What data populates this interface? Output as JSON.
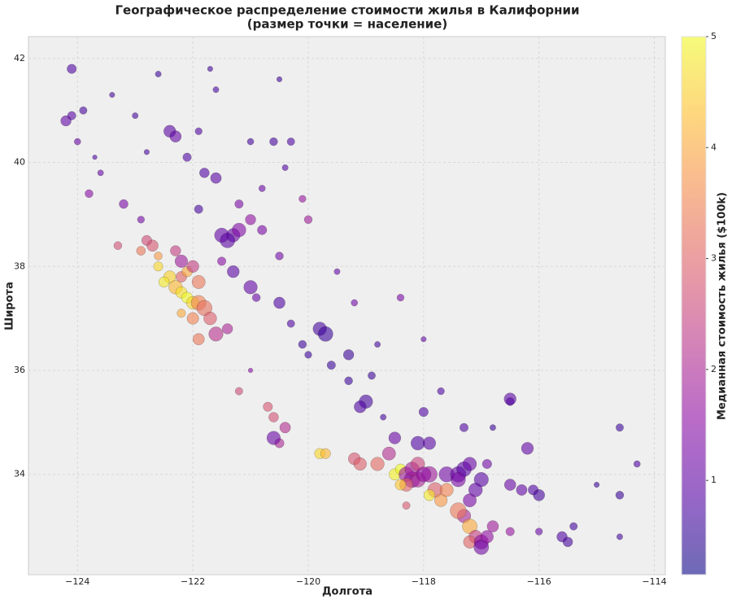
{
  "chart_data": {
    "type": "scatter",
    "title": "Географическое распределение стоимости жилья в Калифорнии",
    "subtitle": "(размер точки = население)",
    "xlabel": "Долгота",
    "ylabel": "Широта",
    "colorbar_label": "Медианная стоимость жилья ($100k)",
    "colormap": "plasma",
    "x": [
      -124.1,
      -124.2,
      -124.1,
      -123.9,
      -123.2,
      -123.8,
      -122.4,
      -122.3,
      -121.6,
      -121.8,
      -121.2,
      -121.0,
      -120.6,
      -122.6,
      -121.6,
      -120.5,
      -123.0,
      -122.9,
      -121.9,
      -121.3,
      -121.4,
      -121.5,
      -121.2,
      -121.0,
      -120.8,
      -120.5,
      -120.0,
      -120.1,
      -121.3,
      -121.0,
      -120.5,
      -119.8,
      -119.7,
      -119.3,
      -119.0,
      -119.1,
      -119.6,
      -120.0,
      -118.9,
      -118.8,
      -119.2,
      -118.4,
      -118.0,
      -118.0,
      -117.3,
      -116.5,
      -117.7,
      -116.8,
      -122.4,
      -122.5,
      -122.3,
      -122.2,
      -122.1,
      -122.0,
      -121.9,
      -121.8,
      -122.2,
      -122.1,
      -122.0,
      -121.9,
      -122.6,
      -122.7,
      -122.8,
      -122.3,
      -122.2,
      -121.7,
      -121.6,
      -121.9,
      -122.0,
      -121.4,
      -122.6,
      -121.2,
      -120.7,
      -120.6,
      -120.4,
      -120.5,
      -119.8,
      -119.7,
      -119.2,
      -119.1,
      -118.8,
      -118.5,
      -118.4,
      -118.3,
      -118.2,
      -118.1,
      -118.3,
      -118.4,
      -118.2,
      -118.1,
      -117.9,
      -117.8,
      -117.9,
      -117.7,
      -117.6,
      -117.4,
      -117.3,
      -117.2,
      -117.0,
      -117.1,
      -117.2,
      -116.9,
      -116.5,
      -116.3,
      -116.1,
      -116.0,
      -118.6,
      -118.5,
      -118.1,
      -117.9,
      -118.3,
      -117.3,
      -117.2,
      -117.4,
      -117.1,
      -117.2,
      -117.0,
      -117.0,
      -116.9,
      -116.8,
      -116.5,
      -116.0,
      -115.6,
      -115.5,
      -115.4,
      -114.6,
      -114.6,
      -114.3,
      -114.6,
      -115.0,
      -116.2,
      -116.5,
      -120.6,
      -120.1,
      -119.5,
      -121.0,
      -122.1,
      -121.9,
      -123.6,
      -124.0,
      -123.3,
      -122.9,
      -122.2,
      -121.5,
      -120.9,
      -120.3,
      -119.3,
      -118.7,
      -117.4,
      -117.6,
      -118.0,
      -120.8,
      -120.4,
      -122.8,
      -123.4,
      -121.7,
      -120.3,
      -123.7
    ],
    "y": [
      41.8,
      40.8,
      40.9,
      41.0,
      39.2,
      39.4,
      40.6,
      40.5,
      39.7,
      39.8,
      39.2,
      40.4,
      40.4,
      41.7,
      41.4,
      41.6,
      40.9,
      38.9,
      39.1,
      38.6,
      38.5,
      38.6,
      38.7,
      38.9,
      38.7,
      38.2,
      38.9,
      39.3,
      37.9,
      37.6,
      37.3,
      36.8,
      36.7,
      36.3,
      35.4,
      35.3,
      36.1,
      36.3,
      35.9,
      36.5,
      37.3,
      37.4,
      36.6,
      35.2,
      34.9,
      35.4,
      35.6,
      34.9,
      37.8,
      37.7,
      37.6,
      37.5,
      37.4,
      37.3,
      37.3,
      37.2,
      37.8,
      37.9,
      38.0,
      37.7,
      38.0,
      38.4,
      38.5,
      38.3,
      38.1,
      37.0,
      36.7,
      36.6,
      37.0,
      36.8,
      38.2,
      35.6,
      35.3,
      35.1,
      34.9,
      34.6,
      34.4,
      34.4,
      34.3,
      34.2,
      34.2,
      34.0,
      34.1,
      34.0,
      33.9,
      33.9,
      33.8,
      33.8,
      34.1,
      34.2,
      34.0,
      33.7,
      33.6,
      33.5,
      34.0,
      34.0,
      34.1,
      34.2,
      33.9,
      33.7,
      33.5,
      34.2,
      33.8,
      33.7,
      33.7,
      33.6,
      34.4,
      34.7,
      34.6,
      34.6,
      33.4,
      33.2,
      33.0,
      33.3,
      32.8,
      32.7,
      32.7,
      32.6,
      32.8,
      33.0,
      32.9,
      32.9,
      32.8,
      32.7,
      33.0,
      33.6,
      34.9,
      34.2,
      32.8,
      33.8,
      34.5,
      35.45,
      34.7,
      36.5,
      37.9,
      36.0,
      40.1,
      40.6,
      39.8,
      40.4,
      38.4,
      38.3,
      37.1,
      38.1,
      37.4,
      36.9,
      35.8,
      35.1,
      33.9,
      33.7,
      34.0,
      39.5,
      39.9,
      40.2,
      41.3,
      41.8,
      40.4,
      40.1
    ],
    "values": [
      0.8,
      1.0,
      0.9,
      0.7,
      1.3,
      1.5,
      0.9,
      1.0,
      0.9,
      0.8,
      1.3,
      0.7,
      0.7,
      0.6,
      0.7,
      0.6,
      0.7,
      1.2,
      0.7,
      1.1,
      0.9,
      1.0,
      1.4,
      1.6,
      1.3,
      1.2,
      1.8,
      1.7,
      0.9,
      1.0,
      0.8,
      0.7,
      0.6,
      0.6,
      0.7,
      0.8,
      0.6,
      0.6,
      0.6,
      0.7,
      1.2,
      1.3,
      1.0,
      0.8,
      0.8,
      0.7,
      0.8,
      0.6,
      4.5,
      4.8,
      4.2,
      4.7,
      5.0,
      4.6,
      3.5,
      3.2,
      3.0,
      4.0,
      2.4,
      3.3,
      4.6,
      2.8,
      2.6,
      2.4,
      1.8,
      2.9,
      2.2,
      3.3,
      3.5,
      2.0,
      3.8,
      2.6,
      2.8,
      2.7,
      2.1,
      2.0,
      4.6,
      4.2,
      2.8,
      2.9,
      3.1,
      4.9,
      5.0,
      1.8,
      1.5,
      2.0,
      3.0,
      4.4,
      1.9,
      2.5,
      1.8,
      2.9,
      4.8,
      3.8,
      1.2,
      1.1,
      0.9,
      1.1,
      0.9,
      1.0,
      1.3,
      1.2,
      1.1,
      1.0,
      0.8,
      0.7,
      2.1,
      1.1,
      0.8,
      0.9,
      2.8,
      2.0,
      4.0,
      3.3,
      2.4,
      3.0,
      1.6,
      1.2,
      1.6,
      1.8,
      1.7,
      1.1,
      0.8,
      0.7,
      0.7,
      0.6,
      0.6,
      0.8,
      0.7,
      0.6,
      1.0,
      0.9,
      1.1,
      0.6,
      1.0,
      1.5,
      0.8,
      0.8,
      1.0,
      1.1,
      2.7,
      3.3,
      4.0,
      1.5,
      1.1,
      0.8,
      0.6,
      0.7,
      1.3,
      3.5,
      1.6,
      1.1,
      0.8,
      0.7,
      0.7,
      0.7,
      0.8,
      0.8
    ],
    "sizes": [
      1200,
      1500,
      1000,
      800,
      1100,
      900,
      2000,
      1800,
      1600,
      1300,
      1000,
      600,
      900,
      500,
      500,
      400,
      500,
      700,
      1000,
      2500,
      3000,
      2800,
      2600,
      1500,
      1200,
      900,
      900,
      700,
      2000,
      2500,
      1800,
      2500,
      3000,
      1500,
      2500,
      2000,
      1000,
      700,
      800,
      500,
      600,
      700,
      400,
      1200,
      1000,
      900,
      700,
      500,
      2000,
      1500,
      2500,
      1800,
      1700,
      2200,
      3000,
      3200,
      1600,
      1500,
      2000,
      2400,
      1200,
      1800,
      1400,
      1500,
      2200,
      2300,
      2800,
      1800,
      1900,
      1500,
      900,
      800,
      1200,
      1300,
      1600,
      1200,
      1500,
      1400,
      2000,
      2200,
      2500,
      1800,
      1500,
      3000,
      3500,
      3200,
      2400,
      1600,
      2800,
      2600,
      3400,
      3000,
      1700,
      2200,
      3200,
      3300,
      3000,
      2500,
      2800,
      2600,
      2400,
      1200,
      1800,
      1600,
      1400,
      1800,
      2400,
      2000,
      2600,
      2200,
      800,
      2500,
      3000,
      3500,
      2400,
      2200,
      2800,
      3000,
      2200,
      1800,
      1000,
      700,
      1500,
      1300,
      800,
      900,
      800,
      600,
      500,
      400,
      2000,
      2000,
      2500,
      900,
      500,
      300,
      1000,
      700,
      500,
      600,
      900,
      1100,
      1000,
      1000,
      900,
      800,
      900,
      500,
      2900,
      2400,
      3000,
      600,
      500,
      400,
      400,
      400,
      800,
      300
    ],
    "xlim": [
      -124.85,
      -113.81
    ],
    "ylim": [
      32.07,
      42.42
    ],
    "clim": [
      0.15,
      5.0
    ],
    "xticks": [
      {
        "value": -124,
        "label": "−124"
      },
      {
        "value": -122,
        "label": "−122"
      },
      {
        "value": -120,
        "label": "−120"
      },
      {
        "value": -118,
        "label": "−118"
      },
      {
        "value": -116,
        "label": "−116"
      },
      {
        "value": -114,
        "label": "−114"
      }
    ],
    "yticks": [
      34,
      36,
      38,
      40,
      42
    ],
    "cticks": [
      1,
      2,
      3,
      4,
      5
    ],
    "grid": true
  }
}
